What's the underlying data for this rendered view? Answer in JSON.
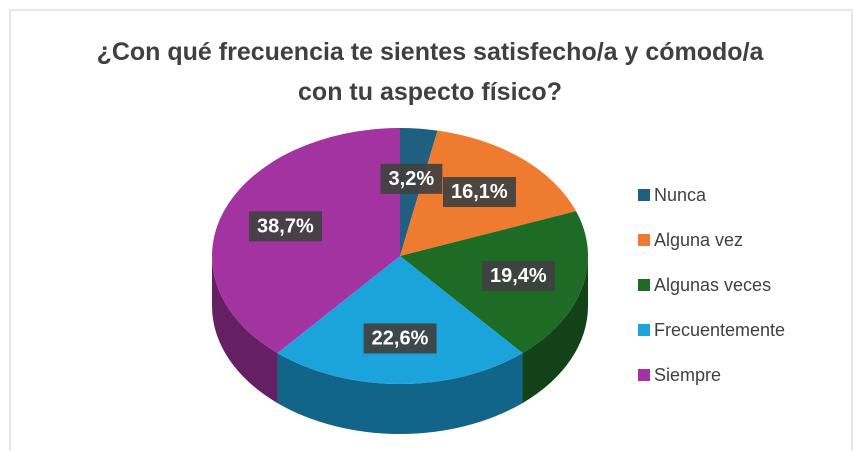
{
  "chart_data": {
    "type": "pie",
    "title": "¿Con qué frecuencia te sientes satisfecho/a y cómodo/a con tu aspecto físico?",
    "categories": [
      "Nunca",
      "Alguna vez",
      "Algunas veces",
      "Frecuentemente",
      "Siempre"
    ],
    "values": [
      3.2,
      16.1,
      19.4,
      22.6,
      38.7
    ],
    "value_labels": [
      "3,2%",
      "16,1%",
      "19,4%",
      "22,6%",
      "38,7%"
    ],
    "colors": [
      "#215f80",
      "#ee7b30",
      "#1e6b26",
      "#1ba3dc",
      "#a233a0"
    ],
    "legend": "right"
  }
}
